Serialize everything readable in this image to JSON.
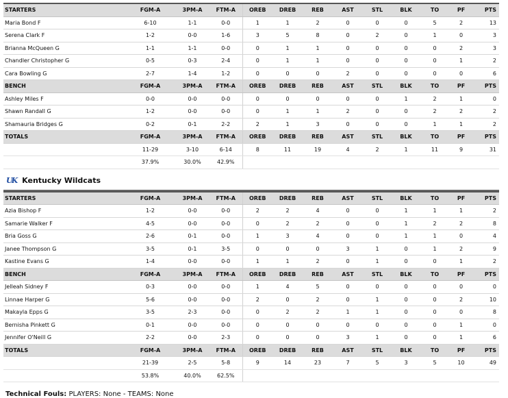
{
  "columns": [
    "FGM-A",
    "3PM-A",
    "FTM-A",
    "OREB",
    "DREB",
    "REB",
    "AST",
    "STL",
    "BLK",
    "TO",
    "PF",
    "PTS"
  ],
  "labels": {
    "starters": "STARTERS",
    "bench": "BENCH",
    "totals": "TOTALS"
  },
  "team1": {
    "starters": [
      {
        "name": "Maria Bond F",
        "stats": [
          "6-10",
          "1-1",
          "0-0",
          "1",
          "1",
          "2",
          "0",
          "0",
          "0",
          "5",
          "2",
          "13"
        ]
      },
      {
        "name": "Serena Clark F",
        "stats": [
          "1-2",
          "0-0",
          "1-6",
          "3",
          "5",
          "8",
          "0",
          "2",
          "0",
          "1",
          "0",
          "3"
        ]
      },
      {
        "name": "Brianna McQueen G",
        "stats": [
          "1-1",
          "1-1",
          "0-0",
          "0",
          "1",
          "1",
          "0",
          "0",
          "0",
          "0",
          "2",
          "3"
        ]
      },
      {
        "name": "Chandler Christopher G",
        "stats": [
          "0-5",
          "0-3",
          "2-4",
          "0",
          "1",
          "1",
          "0",
          "0",
          "0",
          "0",
          "1",
          "2"
        ]
      },
      {
        "name": "Cara Bowling G",
        "stats": [
          "2-7",
          "1-4",
          "1-2",
          "0",
          "0",
          "0",
          "2",
          "0",
          "0",
          "0",
          "0",
          "6"
        ]
      }
    ],
    "bench": [
      {
        "name": "Ashley Miles F",
        "stats": [
          "0-0",
          "0-0",
          "0-0",
          "0",
          "0",
          "0",
          "0",
          "0",
          "1",
          "2",
          "1",
          "0"
        ]
      },
      {
        "name": "Shawn Randall G",
        "stats": [
          "1-2",
          "0-0",
          "0-0",
          "0",
          "1",
          "1",
          "2",
          "0",
          "0",
          "2",
          "2",
          "2"
        ]
      },
      {
        "name": "Shamauria Bridges G",
        "stats": [
          "0-2",
          "0-1",
          "2-2",
          "2",
          "1",
          "3",
          "0",
          "0",
          "0",
          "1",
          "1",
          "2"
        ]
      }
    ],
    "totals": [
      "11-29",
      "3-10",
      "6-14",
      "8",
      "11",
      "19",
      "4",
      "2",
      "1",
      "11",
      "9",
      "31"
    ],
    "pct": [
      "37.9%",
      "30.0%",
      "42.9%"
    ]
  },
  "team2": {
    "name": "Kentucky Wildcats",
    "logo": "UK",
    "starters": [
      {
        "name": "Azia Bishop F",
        "stats": [
          "1-2",
          "0-0",
          "0-0",
          "2",
          "2",
          "4",
          "0",
          "0",
          "1",
          "1",
          "1",
          "2"
        ]
      },
      {
        "name": "Samarie Walker F",
        "stats": [
          "4-5",
          "0-0",
          "0-0",
          "0",
          "2",
          "2",
          "0",
          "0",
          "1",
          "2",
          "2",
          "8"
        ]
      },
      {
        "name": "Bria Goss G",
        "stats": [
          "2-6",
          "0-1",
          "0-0",
          "1",
          "3",
          "4",
          "0",
          "0",
          "1",
          "1",
          "0",
          "4"
        ]
      },
      {
        "name": "Janee Thompson G",
        "stats": [
          "3-5",
          "0-1",
          "3-5",
          "0",
          "0",
          "0",
          "3",
          "1",
          "0",
          "1",
          "2",
          "9"
        ]
      },
      {
        "name": "Kastine Evans G",
        "stats": [
          "1-4",
          "0-0",
          "0-0",
          "1",
          "1",
          "2",
          "0",
          "1",
          "0",
          "0",
          "1",
          "2"
        ]
      }
    ],
    "bench": [
      {
        "name": "Jelleah Sidney F",
        "stats": [
          "0-3",
          "0-0",
          "0-0",
          "1",
          "4",
          "5",
          "0",
          "0",
          "0",
          "0",
          "0",
          "0"
        ]
      },
      {
        "name": "Linnae Harper G",
        "stats": [
          "5-6",
          "0-0",
          "0-0",
          "2",
          "0",
          "2",
          "0",
          "1",
          "0",
          "0",
          "2",
          "10"
        ]
      },
      {
        "name": "Makayla Epps G",
        "stats": [
          "3-5",
          "2-3",
          "0-0",
          "0",
          "2",
          "2",
          "1",
          "1",
          "0",
          "0",
          "0",
          "8"
        ]
      },
      {
        "name": "Bernisha Pinkett G",
        "stats": [
          "0-1",
          "0-0",
          "0-0",
          "0",
          "0",
          "0",
          "0",
          "0",
          "0",
          "0",
          "1",
          "0"
        ]
      },
      {
        "name": "Jennifer O'Neill G",
        "stats": [
          "2-2",
          "0-0",
          "2-3",
          "0",
          "0",
          "0",
          "3",
          "1",
          "0",
          "0",
          "1",
          "6"
        ]
      }
    ],
    "totals": [
      "21-39",
      "2-5",
      "5-8",
      "9",
      "14",
      "23",
      "7",
      "5",
      "3",
      "5",
      "10",
      "49"
    ],
    "pct": [
      "53.8%",
      "40.0%",
      "62.5%"
    ]
  },
  "technical": {
    "label": "Technical Fouls:",
    "text": "PLAYERS: None - TEAMS: None"
  }
}
